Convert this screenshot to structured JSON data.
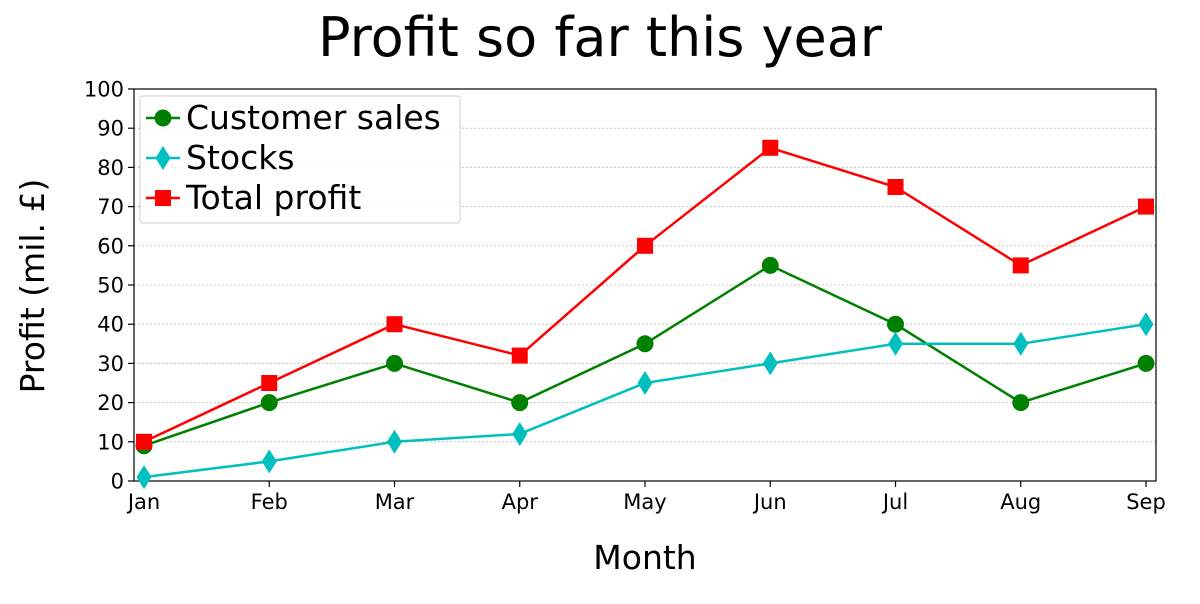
{
  "chart_data": {
    "type": "line",
    "title": "Profit so far this year",
    "xlabel": "Month",
    "ylabel": "Profit (mil. £)",
    "categories": [
      "Jan",
      "Feb",
      "Mar",
      "Apr",
      "May",
      "Jun",
      "Jul",
      "Aug",
      "Sep"
    ],
    "ylim": [
      0,
      100
    ],
    "yticks": [
      0,
      10,
      20,
      30,
      40,
      50,
      60,
      70,
      80,
      90,
      100
    ],
    "grid": "horizontal dotted",
    "legend_position": "top-left",
    "series": [
      {
        "name": "Customer sales",
        "color": "#008000",
        "marker": "circle",
        "values": [
          9,
          20,
          30,
          20,
          35,
          55,
          40,
          20,
          30
        ]
      },
      {
        "name": "Stocks",
        "color": "#00bfbf",
        "marker": "diamond",
        "values": [
          1,
          5,
          10,
          12,
          25,
          30,
          35,
          35,
          40
        ]
      },
      {
        "name": "Total profit",
        "color": "#ff0000",
        "marker": "square",
        "values": [
          10,
          25,
          40,
          32,
          60,
          85,
          75,
          55,
          70
        ]
      }
    ]
  }
}
